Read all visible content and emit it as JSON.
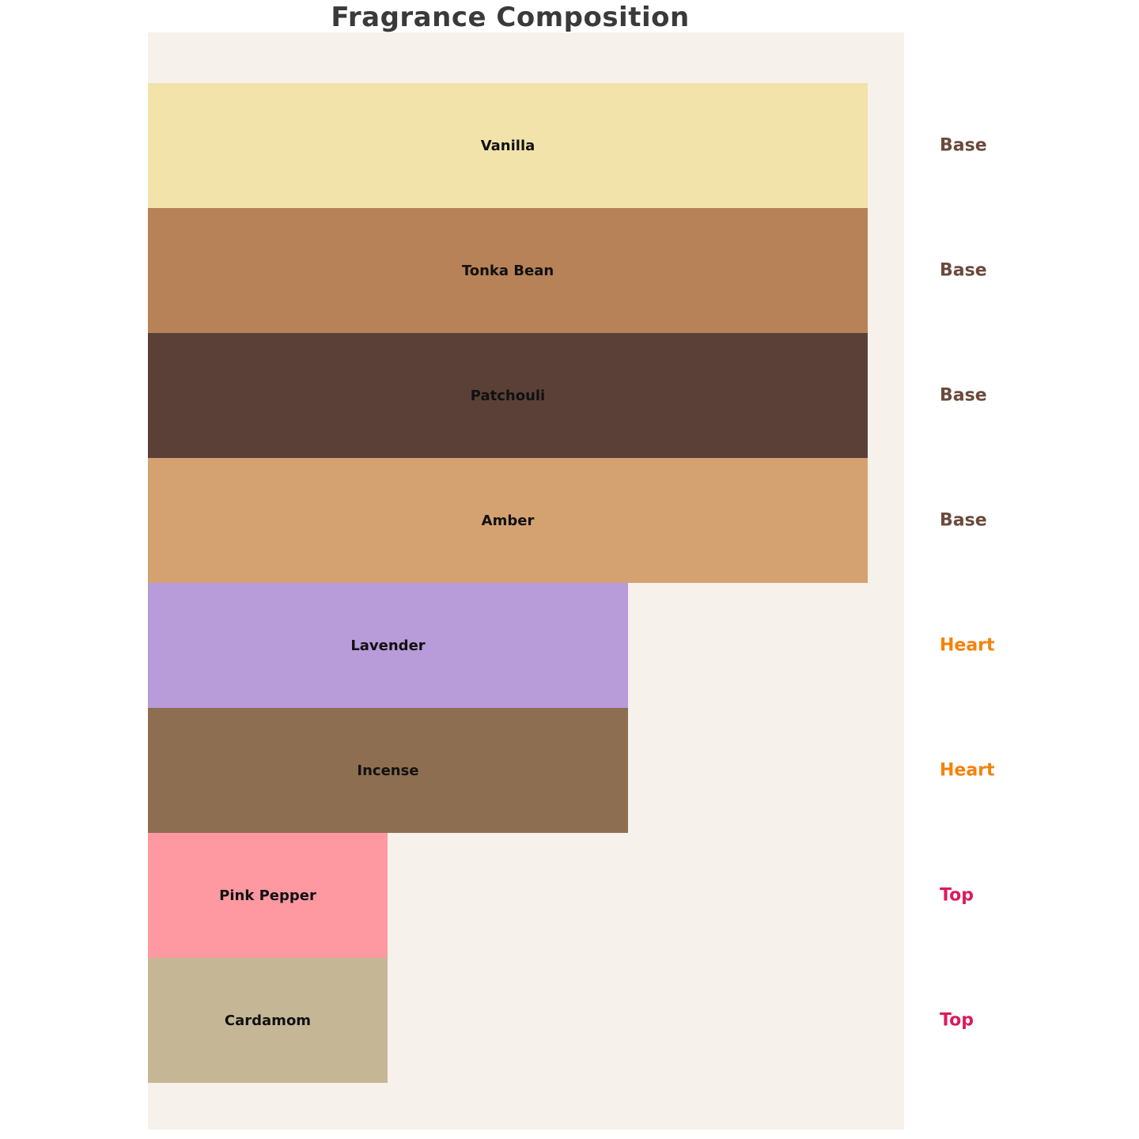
{
  "chart_data": {
    "type": "bar",
    "orientation": "horizontal",
    "title": "Fragrance Composition",
    "xlabel": "",
    "ylabel": "",
    "value_unit": "percent of full bar width",
    "xlim": [
      0,
      100
    ],
    "grid": false,
    "legend_position": "right-of-bars",
    "notes": [
      {
        "label": "Vanilla",
        "tier": "Base",
        "value": 100,
        "color": "#f2e3aa"
      },
      {
        "label": "Tonka Bean",
        "tier": "Base",
        "value": 100,
        "color": "#b78257"
      },
      {
        "label": "Patchouli",
        "tier": "Base",
        "value": 100,
        "color": "#5a4037"
      },
      {
        "label": "Amber",
        "tier": "Base",
        "value": 100,
        "color": "#d4a271"
      },
      {
        "label": "Lavender",
        "tier": "Heart",
        "value": 66.7,
        "color": "#b89bd9"
      },
      {
        "label": "Incense",
        "tier": "Heart",
        "value": 66.7,
        "color": "#8d6e50"
      },
      {
        "label": "Pink Pepper",
        "tier": "Top",
        "value": 33.3,
        "color": "#fe99a1"
      },
      {
        "label": "Cardamom",
        "tier": "Top",
        "value": 33.3,
        "color": "#c5b795"
      }
    ],
    "tier_label_colors": {
      "Base": "#6b4a3c",
      "Heart": "#f5820b",
      "Top": "#dc1b5e"
    },
    "colors": {
      "page_background": "#ffffff",
      "panel_background": "#f6f1ea",
      "title": "#3a3a3a",
      "bar_label": "#111111"
    }
  }
}
